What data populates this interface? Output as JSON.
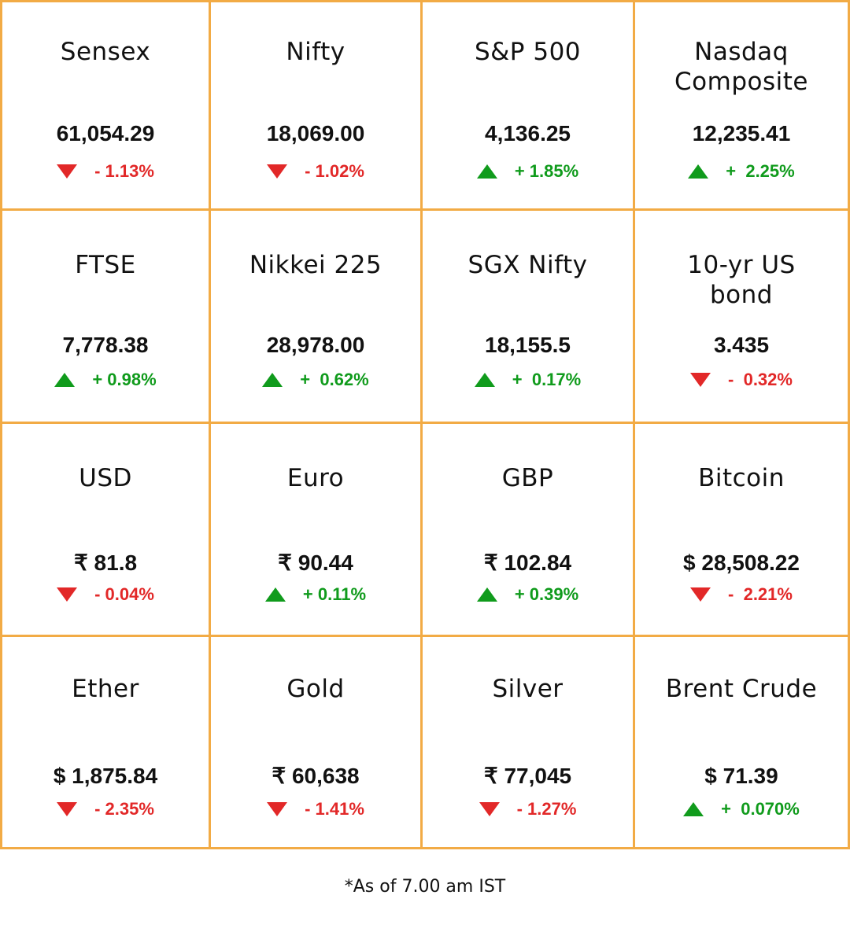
{
  "colors": {
    "border": "#f2ab45",
    "up": "#109b1c",
    "down": "#e22828",
    "text": "#111111"
  },
  "markets": [
    {
      "name": "Sensex",
      "value": "61,054.29",
      "direction": "down",
      "change": "- 1.13%"
    },
    {
      "name": "Nifty",
      "value": "18,069.00",
      "direction": "down",
      "change": "- 1.02%"
    },
    {
      "name": "S&P 500",
      "value": "4,136.25",
      "direction": "up",
      "change": "+ 1.85%"
    },
    {
      "name": "Nasdaq Composite",
      "value": "12,235.41",
      "direction": "up",
      "change": "+  2.25%"
    },
    {
      "name": "FTSE",
      "value": "7,778.38",
      "direction": "up",
      "change": "+ 0.98%"
    },
    {
      "name": "Nikkei 225",
      "value": "28,978.00",
      "direction": "up",
      "change": "+  0.62%"
    },
    {
      "name": "SGX Nifty",
      "value": "18,155.5",
      "direction": "up",
      "change": "+  0.17%"
    },
    {
      "name": "10-yr US bond",
      "value": "3.435",
      "direction": "down",
      "change": "-  0.32%"
    },
    {
      "name": "USD",
      "value": "₹ 81.8",
      "direction": "down",
      "change": "- 0.04%"
    },
    {
      "name": "Euro",
      "value": "₹ 90.44",
      "direction": "up",
      "change": "+ 0.11%"
    },
    {
      "name": "GBP",
      "value": "₹ 102.84",
      "direction": "up",
      "change": "+ 0.39%"
    },
    {
      "name": "Bitcoin",
      "value": "$ 28,508.22",
      "direction": "down",
      "change": "-  2.21%"
    },
    {
      "name": "Ether",
      "value": "$ 1,875.84",
      "direction": "down",
      "change": "- 2.35%"
    },
    {
      "name": "Gold",
      "value": "₹ 60,638",
      "direction": "down",
      "change": "- 1.41%"
    },
    {
      "name": "Silver",
      "value": "₹ 77,045",
      "direction": "down",
      "change": "- 1.27%"
    },
    {
      "name": "Brent Crude",
      "value": "$ 71.39",
      "direction": "up",
      "change": "+  0.070%"
    }
  ],
  "footnote": "*As of 7.00 am IST"
}
